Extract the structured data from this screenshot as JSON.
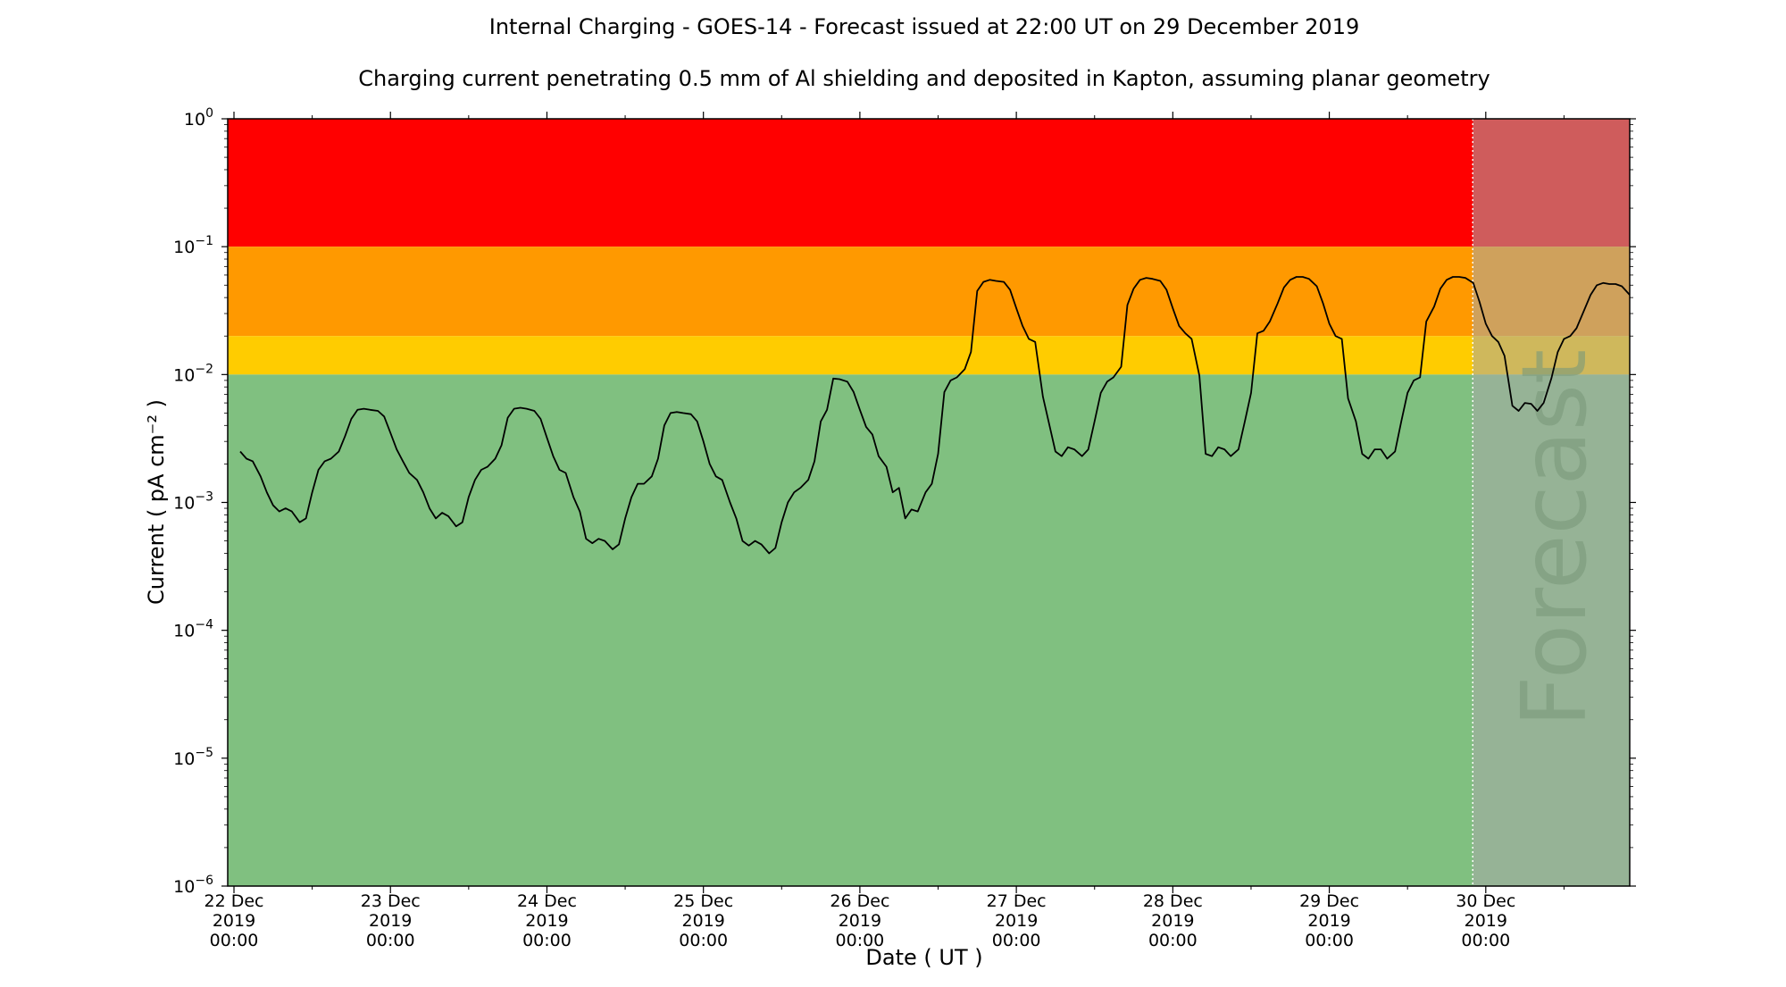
{
  "chart_data": {
    "type": "line",
    "title": "Internal Charging - GOES-14 - Forecast issued at 22:00 UT on 29 December 2019",
    "subtitle": "Charging current penetrating 0.5 mm of Al shielding and deposited in Kapton, assuming planar geometry",
    "xlabel": "Date ( UT )",
    "ylabel": "Current ( pA cm⁻² )",
    "yscale": "log",
    "ylim": [
      1e-06,
      1
    ],
    "xlim_days": [
      21.96,
      30.92
    ],
    "y_ticks": [
      {
        "base": "10",
        "exp": "0",
        "value": 1
      },
      {
        "base": "10",
        "exp": "−1",
        "value": 0.1
      },
      {
        "base": "10",
        "exp": "−2",
        "value": 0.01
      },
      {
        "base": "10",
        "exp": "−3",
        "value": 0.001
      },
      {
        "base": "10",
        "exp": "−4",
        "value": 0.0001
      },
      {
        "base": "10",
        "exp": "−5",
        "value": 1e-05
      },
      {
        "base": "10",
        "exp": "−6",
        "value": 1e-06
      }
    ],
    "x_ticks": [
      {
        "day": 22,
        "line1": "22 Dec",
        "line2": "2019",
        "line3": "00:00"
      },
      {
        "day": 23,
        "line1": "23 Dec",
        "line2": "2019",
        "line3": "00:00"
      },
      {
        "day": 24,
        "line1": "24 Dec",
        "line2": "2019",
        "line3": "00:00"
      },
      {
        "day": 25,
        "line1": "25 Dec",
        "line2": "2019",
        "line3": "00:00"
      },
      {
        "day": 26,
        "line1": "26 Dec",
        "line2": "2019",
        "line3": "00:00"
      },
      {
        "day": 27,
        "line1": "27 Dec",
        "line2": "2019",
        "line3": "00:00"
      },
      {
        "day": 28,
        "line1": "28 Dec",
        "line2": "2019",
        "line3": "00:00"
      },
      {
        "day": 29,
        "line1": "29 Dec",
        "line2": "2019",
        "line3": "00:00"
      },
      {
        "day": 30,
        "line1": "30 Dec",
        "line2": "2019",
        "line3": "00:00"
      }
    ],
    "bands": [
      {
        "from": 0.1,
        "to": 1,
        "color": "#ff0000"
      },
      {
        "from": 0.02,
        "to": 0.1,
        "color": "#ff9900"
      },
      {
        "from": 0.01,
        "to": 0.02,
        "color": "#ffcc00"
      },
      {
        "from": 1e-06,
        "to": 0.01,
        "color": "#80c080"
      }
    ],
    "forecast": {
      "start_day": 29.917,
      "label": "Forecast",
      "overlay_color": "#a8a8a8"
    },
    "grid": false,
    "line_color": "#000000",
    "series": [
      {
        "points": [
          [
            22.04,
            0.0025
          ],
          [
            22.08,
            0.0022
          ],
          [
            22.12,
            0.0021
          ],
          [
            22.17,
            0.0016
          ],
          [
            22.21,
            0.0012
          ],
          [
            22.25,
            0.00095
          ],
          [
            22.29,
            0.00085
          ],
          [
            22.33,
            0.0009
          ],
          [
            22.37,
            0.00085
          ],
          [
            22.42,
            0.0007
          ],
          [
            22.46,
            0.00075
          ],
          [
            22.5,
            0.0012
          ],
          [
            22.54,
            0.0018
          ],
          [
            22.58,
            0.0021
          ],
          [
            22.62,
            0.0022
          ],
          [
            22.67,
            0.0025
          ],
          [
            22.71,
            0.0033
          ],
          [
            22.75,
            0.0045
          ],
          [
            22.79,
            0.0053
          ],
          [
            22.83,
            0.0054
          ],
          [
            22.87,
            0.0053
          ],
          [
            22.92,
            0.0052
          ],
          [
            22.96,
            0.0047
          ],
          [
            23.0,
            0.0035
          ],
          [
            23.04,
            0.0026
          ],
          [
            23.08,
            0.0021
          ],
          [
            23.12,
            0.0017
          ],
          [
            23.17,
            0.0015
          ],
          [
            23.21,
            0.0012
          ],
          [
            23.25,
            0.0009
          ],
          [
            23.29,
            0.00075
          ],
          [
            23.33,
            0.00083
          ],
          [
            23.37,
            0.00078
          ],
          [
            23.42,
            0.00065
          ],
          [
            23.46,
            0.0007
          ],
          [
            23.5,
            0.0011
          ],
          [
            23.54,
            0.0015
          ],
          [
            23.58,
            0.0018
          ],
          [
            23.62,
            0.0019
          ],
          [
            23.67,
            0.0022
          ],
          [
            23.71,
            0.0028
          ],
          [
            23.75,
            0.0046
          ],
          [
            23.79,
            0.0054
          ],
          [
            23.83,
            0.0055
          ],
          [
            23.87,
            0.0054
          ],
          [
            23.92,
            0.0052
          ],
          [
            23.96,
            0.0045
          ],
          [
            24.0,
            0.0032
          ],
          [
            24.04,
            0.0023
          ],
          [
            24.08,
            0.0018
          ],
          [
            24.12,
            0.0017
          ],
          [
            24.17,
            0.0011
          ],
          [
            24.21,
            0.00085
          ],
          [
            24.25,
            0.00052
          ],
          [
            24.29,
            0.00048
          ],
          [
            24.33,
            0.00052
          ],
          [
            24.37,
            0.0005
          ],
          [
            24.42,
            0.00043
          ],
          [
            24.46,
            0.00047
          ],
          [
            24.5,
            0.00075
          ],
          [
            24.54,
            0.0011
          ],
          [
            24.58,
            0.0014
          ],
          [
            24.62,
            0.0014
          ],
          [
            24.67,
            0.0016
          ],
          [
            24.71,
            0.0022
          ],
          [
            24.75,
            0.004
          ],
          [
            24.79,
            0.005
          ],
          [
            24.83,
            0.0051
          ],
          [
            24.87,
            0.005
          ],
          [
            24.92,
            0.0049
          ],
          [
            24.96,
            0.0043
          ],
          [
            25.0,
            0.003
          ],
          [
            25.04,
            0.002
          ],
          [
            25.08,
            0.0016
          ],
          [
            25.12,
            0.0015
          ],
          [
            25.17,
            0.001
          ],
          [
            25.21,
            0.00075
          ],
          [
            25.25,
            0.0005
          ],
          [
            25.29,
            0.00046
          ],
          [
            25.33,
            0.0005
          ],
          [
            25.37,
            0.00047
          ],
          [
            25.42,
            0.0004
          ],
          [
            25.46,
            0.00044
          ],
          [
            25.5,
            0.0007
          ],
          [
            25.54,
            0.001
          ],
          [
            25.58,
            0.0012
          ],
          [
            25.62,
            0.0013
          ],
          [
            25.67,
            0.0015
          ],
          [
            25.71,
            0.0021
          ],
          [
            25.75,
            0.0043
          ],
          [
            25.79,
            0.0053
          ],
          [
            25.83,
            0.0093
          ],
          [
            25.87,
            0.0092
          ],
          [
            25.92,
            0.0088
          ],
          [
            25.96,
            0.0073
          ],
          [
            26.0,
            0.0053
          ],
          [
            26.04,
            0.0039
          ],
          [
            26.08,
            0.0034
          ],
          [
            26.12,
            0.0023
          ],
          [
            26.17,
            0.0019
          ],
          [
            26.21,
            0.0012
          ],
          [
            26.25,
            0.0013
          ],
          [
            26.29,
            0.00075
          ],
          [
            26.33,
            0.00088
          ],
          [
            26.37,
            0.00085
          ],
          [
            26.42,
            0.0012
          ],
          [
            26.46,
            0.0014
          ],
          [
            26.5,
            0.0024
          ],
          [
            26.54,
            0.0073
          ],
          [
            26.58,
            0.009
          ],
          [
            26.62,
            0.0095
          ],
          [
            26.67,
            0.011
          ],
          [
            26.71,
            0.015
          ],
          [
            26.75,
            0.045
          ],
          [
            26.79,
            0.053
          ],
          [
            26.83,
            0.055
          ],
          [
            26.87,
            0.054
          ],
          [
            26.92,
            0.053
          ],
          [
            26.96,
            0.046
          ],
          [
            27.0,
            0.033
          ],
          [
            27.04,
            0.024
          ],
          [
            27.08,
            0.019
          ],
          [
            27.12,
            0.018
          ],
          [
            27.17,
            0.0067
          ],
          [
            27.21,
            0.0041
          ],
          [
            27.25,
            0.0025
          ],
          [
            27.29,
            0.0023
          ],
          [
            27.33,
            0.0027
          ],
          [
            27.37,
            0.0026
          ],
          [
            27.42,
            0.0023
          ],
          [
            27.46,
            0.0026
          ],
          [
            27.5,
            0.0043
          ],
          [
            27.54,
            0.0072
          ],
          [
            27.58,
            0.0088
          ],
          [
            27.62,
            0.0095
          ],
          [
            27.67,
            0.0115
          ],
          [
            27.71,
            0.035
          ],
          [
            27.75,
            0.047
          ],
          [
            27.79,
            0.055
          ],
          [
            27.83,
            0.057
          ],
          [
            27.87,
            0.056
          ],
          [
            27.92,
            0.054
          ],
          [
            27.96,
            0.046
          ],
          [
            28.0,
            0.033
          ],
          [
            28.04,
            0.024
          ],
          [
            28.08,
            0.021
          ],
          [
            28.12,
            0.019
          ],
          [
            28.17,
            0.0098
          ],
          [
            28.21,
            0.0024
          ],
          [
            28.25,
            0.0023
          ],
          [
            28.29,
            0.0027
          ],
          [
            28.33,
            0.0026
          ],
          [
            28.37,
            0.0023
          ],
          [
            28.42,
            0.0026
          ],
          [
            28.46,
            0.0043
          ],
          [
            28.5,
            0.0072
          ],
          [
            28.54,
            0.021
          ],
          [
            28.58,
            0.022
          ],
          [
            28.62,
            0.026
          ],
          [
            28.67,
            0.036
          ],
          [
            28.71,
            0.048
          ],
          [
            28.75,
            0.055
          ],
          [
            28.79,
            0.058
          ],
          [
            28.83,
            0.058
          ],
          [
            28.87,
            0.056
          ],
          [
            28.92,
            0.049
          ],
          [
            28.96,
            0.036
          ],
          [
            29.0,
            0.025
          ],
          [
            29.04,
            0.02
          ],
          [
            29.08,
            0.019
          ],
          [
            29.12,
            0.0065
          ],
          [
            29.17,
            0.0043
          ],
          [
            29.21,
            0.0024
          ],
          [
            29.25,
            0.0022
          ],
          [
            29.29,
            0.0026
          ],
          [
            29.33,
            0.0026
          ],
          [
            29.37,
            0.0022
          ],
          [
            29.42,
            0.0025
          ],
          [
            29.46,
            0.0043
          ],
          [
            29.5,
            0.0072
          ],
          [
            29.54,
            0.009
          ],
          [
            29.58,
            0.0095
          ],
          [
            29.62,
            0.026
          ],
          [
            29.67,
            0.034
          ],
          [
            29.71,
            0.047
          ],
          [
            29.75,
            0.055
          ],
          [
            29.79,
            0.058
          ],
          [
            29.83,
            0.058
          ],
          [
            29.87,
            0.057
          ],
          [
            29.92,
            0.052
          ],
          [
            29.96,
            0.037
          ],
          [
            30.0,
            0.025
          ],
          [
            30.04,
            0.02
          ],
          [
            30.08,
            0.018
          ],
          [
            30.12,
            0.014
          ],
          [
            30.17,
            0.0057
          ],
          [
            30.21,
            0.0052
          ],
          [
            30.25,
            0.006
          ],
          [
            30.29,
            0.0059
          ],
          [
            30.33,
            0.0052
          ],
          [
            30.37,
            0.006
          ],
          [
            30.42,
            0.0094
          ],
          [
            30.46,
            0.015
          ],
          [
            30.5,
            0.019
          ],
          [
            30.54,
            0.02
          ],
          [
            30.58,
            0.023
          ],
          [
            30.62,
            0.03
          ],
          [
            30.67,
            0.042
          ],
          [
            30.71,
            0.05
          ],
          [
            30.75,
            0.052
          ],
          [
            30.79,
            0.051
          ],
          [
            30.83,
            0.051
          ],
          [
            30.87,
            0.049
          ],
          [
            30.92,
            0.042
          ]
        ]
      }
    ]
  }
}
